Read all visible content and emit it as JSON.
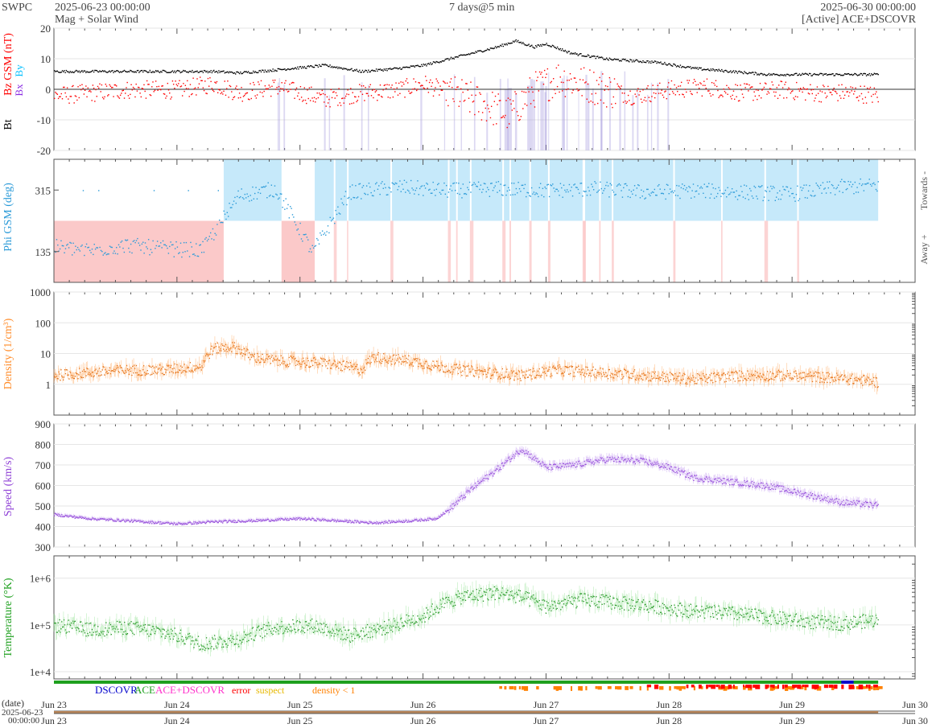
{
  "header": {
    "agency": "SWPC",
    "start_time": "2025-06-23 00:00:00",
    "subtitle": "Mag + Solar Wind",
    "span": "7 days@5 min",
    "end_time": "2025-06-30 00:00:00",
    "source": "[Active] ACE+DSCOVR"
  },
  "chart_data": [
    {
      "type": "scatter",
      "panel": "mag",
      "ylabel_parts": [
        "Bt",
        "Bz GSM (nT)",
        "Bx",
        "By"
      ],
      "ylim": [
        -20,
        20
      ],
      "yticks": [
        -20,
        -10,
        0,
        10,
        20
      ],
      "zero_line": true,
      "colors": {
        "bt": "#000000",
        "bz": "#ff0000",
        "bx": "#8a2be2",
        "by": "#00bfff",
        "shade": "#9b8fd9"
      },
      "series": [
        {
          "name": "Bt",
          "x_day": [
            0,
            0.5,
            1.0,
            1.3,
            1.5,
            1.8,
            2.2,
            2.5,
            2.8,
            3.0,
            3.3,
            3.6,
            3.75,
            3.9,
            4.0,
            4.2,
            4.5,
            4.9,
            5.2,
            5.5,
            5.8,
            6.1,
            6.4,
            6.7
          ],
          "values": [
            6,
            6,
            6,
            6,
            5.5,
            6.5,
            8,
            6,
            7,
            8,
            11,
            14,
            16,
            14,
            15,
            12,
            10,
            9,
            7,
            6,
            5,
            5,
            5,
            5
          ]
        },
        {
          "name": "Bz GSM",
          "x_day": [
            0,
            0.3,
            0.6,
            1.0,
            1.3,
            1.5,
            1.8,
            2.2,
            2.5,
            2.8,
            3.0,
            3.3,
            3.5,
            3.7,
            3.9,
            4.1,
            4.4,
            4.7,
            5.0,
            5.3,
            5.6,
            5.9,
            6.2,
            6.5,
            6.7
          ],
          "values": [
            -2,
            -1,
            0,
            0,
            2,
            -1,
            1,
            -3,
            -1,
            0,
            2,
            -2,
            -5,
            -8,
            0,
            4,
            1,
            -2,
            0,
            1,
            -1,
            0,
            -1,
            -1,
            -2
          ]
        }
      ]
    },
    {
      "type": "scatter",
      "panel": "phi",
      "ylabel": "Phi GSM (deg)",
      "ylim": [
        45,
        405
      ],
      "yticks": [
        135,
        315
      ],
      "side_labels": [
        "Towards -",
        "Away +"
      ],
      "colors": {
        "towards": "#c6e9fa",
        "away": "#fbc9c9",
        "points": "#2a9ad8"
      },
      "sectors": [
        {
          "kind": "away",
          "from_day": 0.0,
          "to_day": 1.38
        },
        {
          "kind": "towards",
          "from_day": 1.38,
          "to_day": 1.85
        },
        {
          "kind": "away",
          "from_day": 1.85,
          "to_day": 2.12
        },
        {
          "kind": "towards",
          "from_day": 2.12,
          "to_day": 6.7
        }
      ],
      "x_day": [
        0,
        0.3,
        0.6,
        0.9,
        1.2,
        1.5,
        1.8,
        2.1,
        2.4,
        2.8,
        3.2,
        3.6,
        4.0,
        4.4,
        4.8,
        5.2,
        5.6,
        6.0,
        6.4,
        6.7
      ],
      "values": [
        150,
        140,
        155,
        145,
        140,
        300,
        320,
        135,
        310,
        325,
        315,
        320,
        315,
        320,
        310,
        315,
        310,
        305,
        325,
        330
      ]
    },
    {
      "type": "scatter",
      "panel": "density",
      "ylabel": "Density (1/cm³)",
      "yscale": "log",
      "ylim": [
        0.1,
        1000
      ],
      "yticks": [
        1,
        10,
        100,
        1000
      ],
      "color": "#ff8c2a",
      "x_day": [
        0,
        0.3,
        0.6,
        0.9,
        1.2,
        1.3,
        1.45,
        1.6,
        1.8,
        2.2,
        2.5,
        2.6,
        2.7,
        2.9,
        3.1,
        3.3,
        3.5,
        3.8,
        4.1,
        4.4,
        4.8,
        5.2,
        5.6,
        5.9,
        6.2,
        6.5,
        6.7
      ],
      "values": [
        2,
        2.5,
        3,
        3,
        4,
        15,
        17,
        8,
        6,
        5,
        3,
        8,
        7,
        6,
        4,
        3,
        2.5,
        2,
        3,
        2.5,
        2,
        1.5,
        2,
        2,
        1.8,
        1.5,
        1.2
      ]
    },
    {
      "type": "scatter",
      "panel": "speed",
      "ylabel": "Speed (km/s)",
      "ylim": [
        300,
        900
      ],
      "yticks": [
        300,
        400,
        500,
        600,
        700,
        800,
        900
      ],
      "color": "#8e3fd6",
      "x_day": [
        0,
        0.3,
        0.6,
        1.0,
        1.3,
        1.6,
        2.0,
        2.3,
        2.6,
        2.9,
        3.1,
        3.2,
        3.4,
        3.6,
        3.8,
        4.0,
        4.2,
        4.5,
        4.8,
        5.0,
        5.2,
        5.5,
        5.8,
        6.1,
        6.4,
        6.7
      ],
      "values": [
        460,
        440,
        430,
        415,
        425,
        430,
        440,
        430,
        420,
        430,
        440,
        480,
        590,
        680,
        780,
        690,
        700,
        730,
        720,
        690,
        640,
        620,
        600,
        560,
        520,
        505
      ]
    },
    {
      "type": "scatter",
      "panel": "temperature",
      "ylabel": "Temperature (°K)",
      "yscale": "log",
      "ylim": [
        7000,
        3000000
      ],
      "yticks": [
        10000,
        100000,
        1000000
      ],
      "ytick_labels": [
        "1e+4",
        "1e+5",
        "1e+6"
      ],
      "color": "#2dbb2d",
      "x_day": [
        0,
        0.3,
        0.6,
        0.9,
        1.2,
        1.5,
        1.8,
        2.1,
        2.4,
        2.7,
        3.0,
        3.3,
        3.6,
        3.8,
        4.0,
        4.3,
        4.6,
        4.9,
        5.2,
        5.5,
        5.8,
        6.1,
        6.4,
        6.7
      ],
      "values": [
        100000,
        80000,
        90000,
        70000,
        40000,
        50000,
        90000,
        100000,
        60000,
        90000,
        150000,
        400000,
        500000,
        400000,
        250000,
        350000,
        300000,
        250000,
        200000,
        180000,
        150000,
        120000,
        110000,
        130000
      ]
    },
    {
      "type": "table",
      "panel": "source-strip",
      "legend": [
        {
          "label": "DSCOVR",
          "color": "#0000cc"
        },
        {
          "label": "ACE",
          "color": "#1ea01e"
        },
        {
          "label": "ACE+DSCOVR",
          "color": "#ff33cc"
        },
        {
          "label": "error",
          "color": "#ff0000"
        },
        {
          "label": "suspect",
          "color": "#e6b800"
        },
        {
          "label": "density < 1",
          "color": "#ff8000"
        }
      ],
      "flags": [
        {
          "kind": "density < 1",
          "from_day": 3.6,
          "to_day": 6.7
        },
        {
          "kind": "error",
          "from_day": 4.8,
          "to_day": 6.7
        },
        {
          "kind": "DSCOVR",
          "from_day": 6.4,
          "to_day": 6.5
        }
      ]
    }
  ],
  "x_axis": {
    "days": 7,
    "data_end_day": 6.7,
    "tick_labels": [
      "Jun 23",
      "Jun 24",
      "Jun 25",
      "Jun 26",
      "Jun 27",
      "Jun 28",
      "Jun 29",
      "Jun 30"
    ],
    "date_caption": "(date)",
    "bottom_start_date": "2025-06-23",
    "bottom_start_time": "00:00:00"
  }
}
